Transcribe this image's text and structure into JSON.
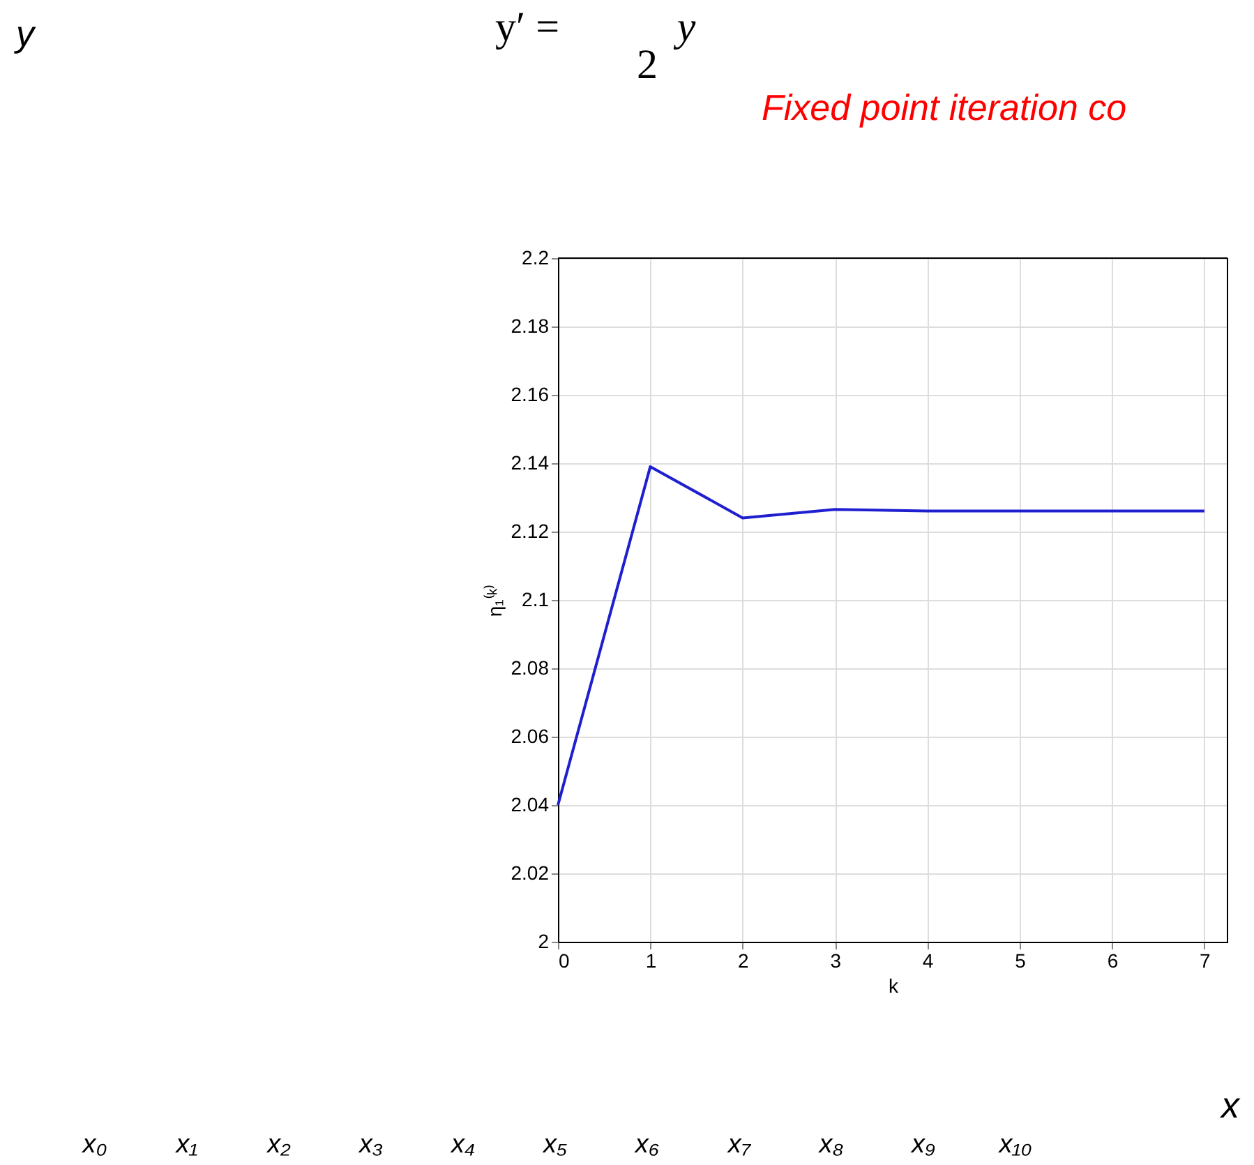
{
  "chart_data": {
    "type": "line",
    "title": "Fixed point iteration co",
    "x": [
      0,
      1,
      2,
      3,
      4,
      5,
      6,
      7
    ],
    "series": [
      {
        "color": "#1f1fd0",
        "values": [
          2.04,
          2.139,
          2.124,
          2.1265,
          2.126,
          2.126,
          2.126,
          2.126
        ]
      }
    ],
    "xlim": [
      0,
      7.25
    ],
    "xticks": [
      0,
      1,
      2,
      3,
      4,
      5,
      6,
      7
    ],
    "ylim": [
      2,
      2.2
    ],
    "yticks": [
      2,
      2.02,
      2.04,
      2.06,
      2.08,
      2.1,
      2.12,
      2.14,
      2.16,
      2.18,
      2.2
    ],
    "xlabel": "k",
    "ylabel": "η₁⁽ᵏ⁾",
    "grid": true,
    "marker": "none",
    "line_style": "solid",
    "annotations": [
      "y′ =",
      "y",
      "2",
      "y",
      "x",
      "x₀",
      "x₁",
      "x₂",
      "x₃",
      "x₄",
      "x₅",
      "x₆",
      "x₇",
      "x₈",
      "x₉",
      "x₁₀"
    ]
  }
}
